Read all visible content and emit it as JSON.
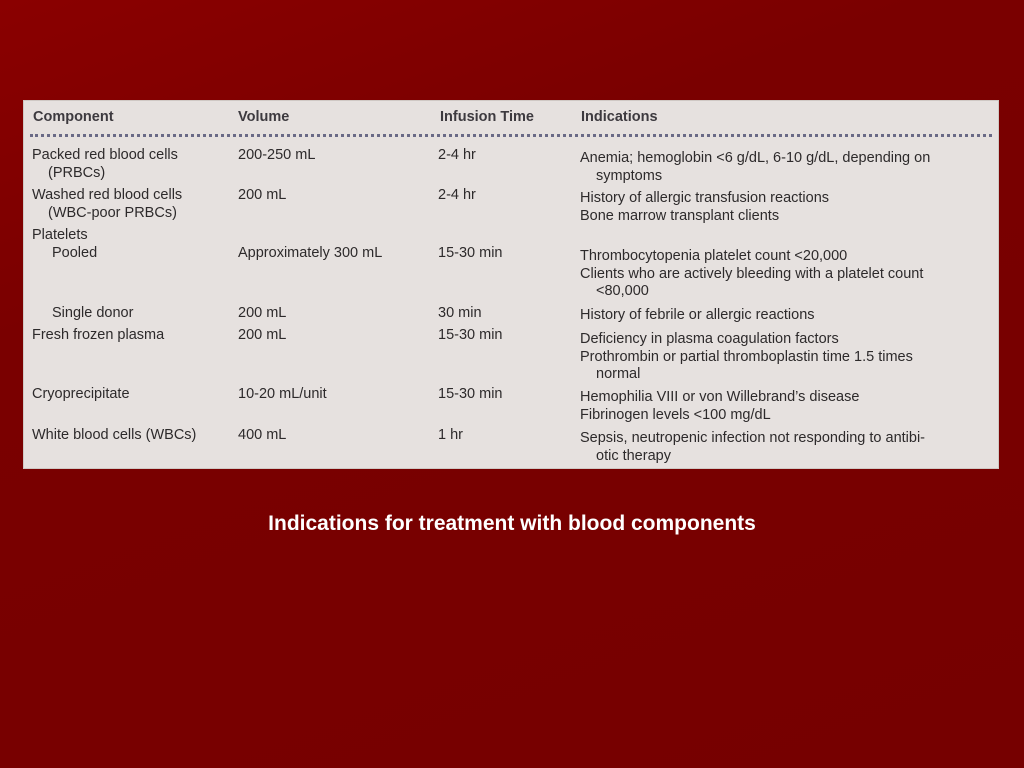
{
  "table": {
    "headers": [
      "Component",
      "Volume",
      "Infusion Time",
      "Indications"
    ],
    "rows": [
      {
        "component": [
          "Packed red blood cells",
          "(PRBCs)"
        ],
        "volume": "200-250 mL",
        "time": "2-4 hr",
        "indications": [
          "Anemia; hemoglobin <6 g/dL, 6-10 g/dL, depending on",
          "symptoms"
        ]
      },
      {
        "component": [
          "Washed red blood cells",
          "(WBC-poor PRBCs)"
        ],
        "volume": "200 mL",
        "time": "2-4 hr",
        "indications": [
          "History of allergic transfusion reactions",
          "Bone marrow transplant clients"
        ]
      },
      {
        "component": [
          "Platelets"
        ],
        "volume": "",
        "time": "",
        "indications": []
      },
      {
        "component": [
          "Pooled"
        ],
        "volume": "Approximately 300 mL",
        "time": "15-30 min",
        "indications": [
          "Thrombocytopenia platelet count <20,000",
          "Clients who are actively bleeding with a platelet count",
          "<80,000"
        ]
      },
      {
        "component": [
          "Single donor"
        ],
        "volume": "200 mL",
        "time": "30 min",
        "indications": [
          "History of febrile or allergic reactions"
        ]
      },
      {
        "component": [
          "Fresh frozen plasma"
        ],
        "volume": "200 mL",
        "time": "15-30 min",
        "indications": [
          "Deficiency in plasma coagulation factors",
          "Prothrombin or partial thromboplastin time 1.5 times",
          "normal"
        ]
      },
      {
        "component": [
          "Cryoprecipitate"
        ],
        "volume": "10-20 mL/unit",
        "time": "15-30 min",
        "indications": [
          "Hemophilia VIII or von Willebrand’s disease",
          "Fibrinogen levels <100 mg/dL"
        ]
      },
      {
        "component": [
          "White blood cells (WBCs)"
        ],
        "volume": "400 mL",
        "time": "1 hr",
        "indications": [
          "Sepsis, neutropenic infection not responding to antibi-",
          "otic therapy"
        ]
      }
    ]
  },
  "caption": "Indications for treatment with blood components"
}
